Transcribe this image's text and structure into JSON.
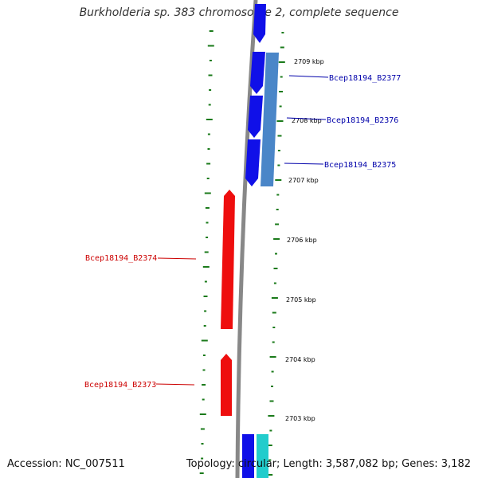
{
  "title": "Burkholderia sp. 383 chromosome 2, complete sequence",
  "footer": {
    "accession": "Accession: NC_007511",
    "topology": "Topology: circular; Length: 3,587,082 bp; Genes: 3,182"
  },
  "scale_labels": [
    "2709 kbp",
    "2708 kbp",
    "2707 kbp",
    "2706 kbp",
    "2705 kbp",
    "2704 kbp",
    "2703 kbp"
  ],
  "gene_labels": [
    {
      "text": "Bcep18194_B2377",
      "strand": "forward"
    },
    {
      "text": "Bcep18194_B2376",
      "strand": "forward"
    },
    {
      "text": "Bcep18194_B2375",
      "strand": "forward"
    },
    {
      "text": "Bcep18194_B2374",
      "strand": "reverse"
    },
    {
      "text": "Bcep18194_B2373",
      "strand": "reverse"
    }
  ],
  "colors": {
    "forward_gene": "#1010e8",
    "reverse_gene": "#ee0e0e",
    "forward_label": "#0000aa",
    "reverse_label": "#cc0000",
    "steelblue_feature": "#4a86c8",
    "cyan_feature": "#22cccc",
    "backbone": "#888888",
    "gc_dashes": "#1a7a1a"
  }
}
